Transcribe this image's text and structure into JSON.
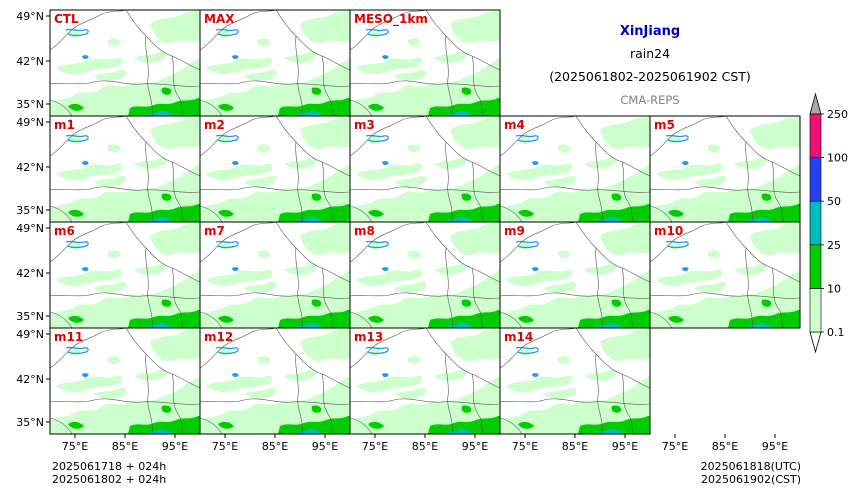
{
  "title": {
    "region": "XinJiang",
    "variable": "rain24",
    "period": "(2025061802-2025061902 CST)",
    "source": "CMA-REPS"
  },
  "panels": [
    [
      "CTL",
      "MAX",
      "MESO_1km"
    ],
    [
      "m1",
      "m2",
      "m3",
      "m4",
      "m5"
    ],
    [
      "m6",
      "m7",
      "m8",
      "m9",
      "m10"
    ],
    [
      "m11",
      "m12",
      "m13",
      "m14"
    ]
  ],
  "lat_ticks": [
    "49°N",
    "42°N",
    "35°N"
  ],
  "lon_ticks": [
    "75°E",
    "85°E",
    "95°E"
  ],
  "colorbar": {
    "levels": [
      "0.1",
      "10",
      "25",
      "50",
      "100",
      "250"
    ],
    "colors": [
      "#ccffcc",
      "#00cc00",
      "#00bbbb",
      "#2244ee",
      "#ee1177"
    ],
    "extend_color": "#a8a8a8"
  },
  "footer": {
    "init_line": "2025061718  +  024h",
    "local_line": "2025061802  +  024h",
    "utc_time": "2025061818(UTC)",
    "cst_time": "2025061902(CST)"
  },
  "colors": {
    "panel_label": "#e00000",
    "region_title": "#0000cc",
    "source": "#808080",
    "rain_light": "#ccffcc",
    "rain_moderate": "#00cc00",
    "rain_heavy": "#00bbbb",
    "lake": "#2299ee"
  }
}
